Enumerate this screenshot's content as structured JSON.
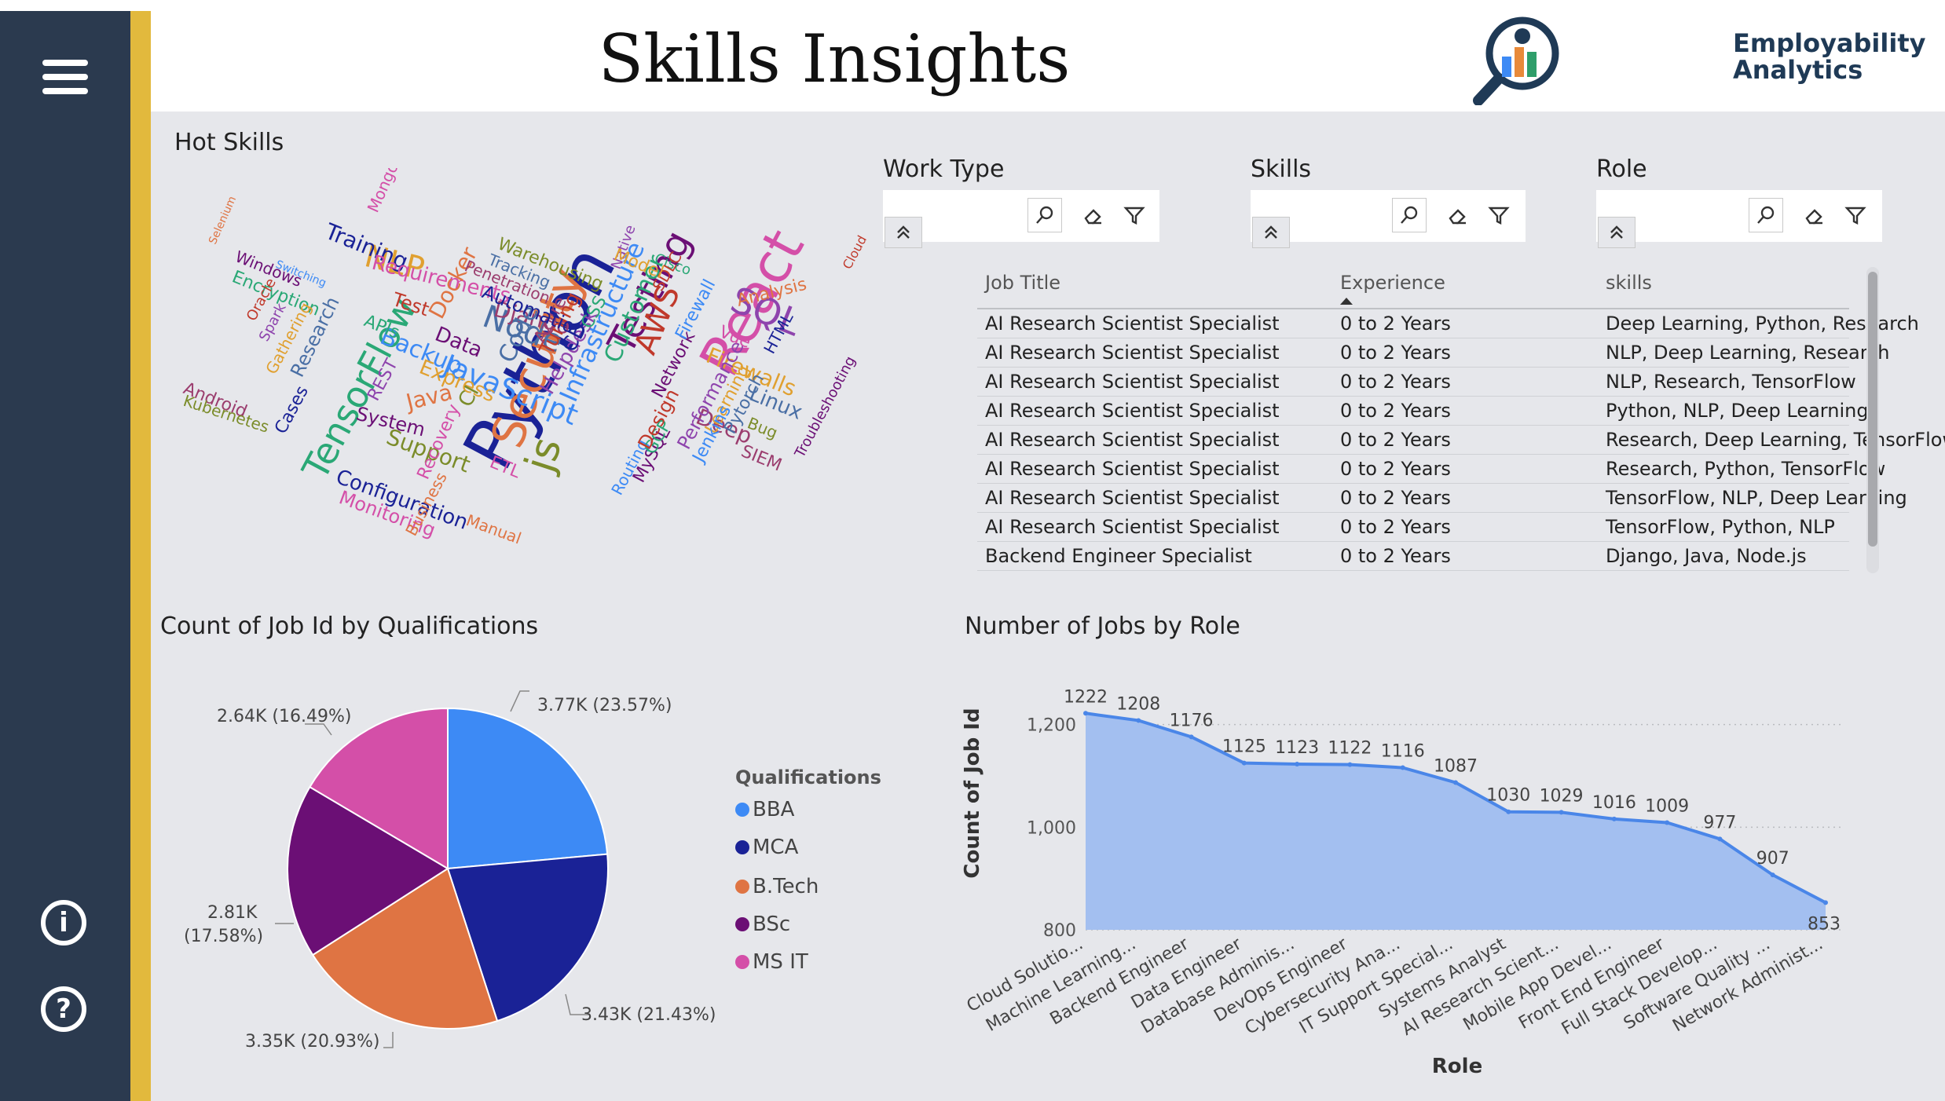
{
  "header": {
    "title": "Skills Insights",
    "logo_line1": "Employability",
    "logo_line2": "Analytics"
  },
  "hot_skills": {
    "title": "Hot Skills",
    "words": [
      "Python",
      "React",
      "Security",
      "Testing",
      "JavaScript",
      "TensorFlow",
      "AWS",
      "SQL",
      "NLP",
      "Node",
      "Django",
      "js",
      "Training",
      "Requirements",
      "Docker",
      "Data",
      "Infrastructure",
      "Customer",
      "Tuning",
      "Helpdesk",
      "Firewalls",
      "Linux",
      "Deep",
      "Support",
      "Configuration",
      "Monitoring",
      "Java",
      "System",
      "Backup",
      "APIs",
      "Test",
      "REST",
      "Express",
      "Code",
      "Azure",
      "CI",
      "CD",
      "ETL",
      "Manual",
      "MySQL",
      "Routing",
      "GCP",
      "Design",
      "Performance",
      "Learning",
      "Pytorch",
      "SIEM",
      "Bug",
      "HTML",
      "Vue",
      "Analysis",
      "Network",
      "Firewall",
      "Cisco",
      "SDLC",
      "Native",
      "Model",
      "Tracking",
      "Penetration",
      "Warehousing",
      "Automation",
      "MongoDB",
      "Selenium",
      "Windows",
      "Switching",
      "Encryption",
      "Oracle",
      "Spark",
      "Gathering",
      "Research",
      "Android",
      "Kubernetes",
      "Cases",
      "Recovery",
      "Business",
      "Troubleshooting",
      "Jenkins",
      "CSS",
      "Cloud"
    ]
  },
  "slicers": [
    {
      "label": "Work Type"
    },
    {
      "label": "Skills"
    },
    {
      "label": "Role"
    }
  ],
  "table": {
    "headers": [
      "Job Title",
      "Experience",
      "skills"
    ],
    "rows": [
      [
        "AI Research Scientist Specialist",
        "0 to 2 Years",
        "Deep Learning, Python, Research"
      ],
      [
        "AI Research Scientist Specialist",
        "0 to 2 Years",
        "NLP, Deep Learning, Research"
      ],
      [
        "AI Research Scientist Specialist",
        "0 to 2 Years",
        "NLP, Research, TensorFlow"
      ],
      [
        "AI Research Scientist Specialist",
        "0 to 2 Years",
        "Python, NLP, Deep Learning"
      ],
      [
        "AI Research Scientist Specialist",
        "0 to 2 Years",
        "Research, Deep Learning, TensorFlow"
      ],
      [
        "AI Research Scientist Specialist",
        "0 to 2 Years",
        "Research, Python, TensorFlow"
      ],
      [
        "AI Research Scientist Specialist",
        "0 to 2 Years",
        "TensorFlow, NLP, Deep Learning"
      ],
      [
        "AI Research Scientist Specialist",
        "0 to 2 Years",
        "TensorFlow, Python, NLP"
      ],
      [
        "Backend Engineer Specialist",
        "0 to 2 Years",
        "Django, Java, Node.js"
      ]
    ]
  },
  "colors": {
    "sidebar": "#2b3a4f",
    "accent": "#e2b93d",
    "canvas": "#e6e7eb",
    "area_fill": "#a3bff0",
    "area_line": "#4a86e8"
  },
  "chart_data": [
    {
      "type": "pie",
      "title": "Count of Job Id by Qualifications",
      "legend_title": "Qualifications",
      "slices": [
        {
          "name": "BBA",
          "value": 3770,
          "label": "3.77K (23.57%)",
          "color": "#3d8af5"
        },
        {
          "name": "MCA",
          "value": 3430,
          "label": "3.43K (21.43%)",
          "color": "#1a2296"
        },
        {
          "name": "B.Tech",
          "value": 3350,
          "label": "3.35K (20.93%)",
          "color": "#df7443"
        },
        {
          "name": "BSc",
          "value": 2810,
          "label_line1": "2.81K",
          "label_line2": "(17.58%)",
          "color": "#6b0f75"
        },
        {
          "name": "MS IT",
          "value": 2640,
          "label": "2.64K (16.49%)",
          "color": "#d44fa8"
        }
      ]
    },
    {
      "type": "area",
      "title": "Number of Jobs by Role",
      "xlabel": "Role",
      "ylabel": "Count of Job Id",
      "ylim": [
        800,
        1250
      ],
      "yticks": [
        800,
        1000,
        1200
      ],
      "ytick_labels": [
        "800",
        "1,000",
        "1,200"
      ],
      "categories": [
        "Cloud Solutio...",
        "Machine Learning...",
        "Backend Engineer",
        "Data Engineer",
        "Database Adminis...",
        "DevOps Engineer",
        "Cybersecurity Ana...",
        "IT Support Special...",
        "Systems Analyst",
        "AI Research Scient...",
        "Mobile App Devel...",
        "Front End Engineer",
        "Full Stack Develop...",
        "Software Quality ...",
        "Network Administ..."
      ],
      "values": [
        1222,
        1208,
        1176,
        1125,
        1123,
        1122,
        1116,
        1087,
        1030,
        1029,
        1016,
        1009,
        977,
        907,
        853
      ]
    }
  ]
}
